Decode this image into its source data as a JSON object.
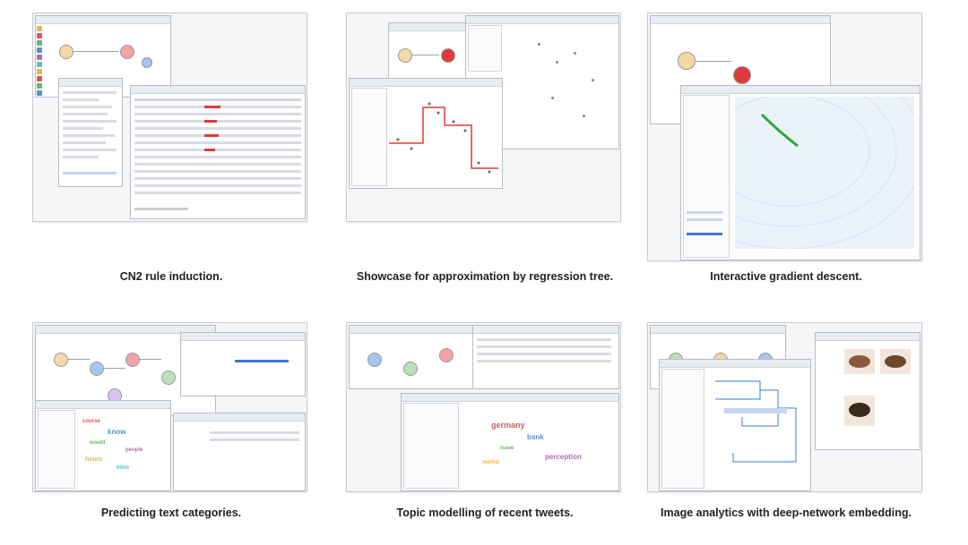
{
  "colors": {
    "thumb_bg": "#f5f6f8",
    "accent_red": "#e03a3a",
    "accent_green": "#2da836",
    "accent_blue": "#3a7bd5",
    "toolbar_colors": [
      "#e6b84a",
      "#d35b5b",
      "#6bb36b",
      "#5b8fd3",
      "#b36bb3",
      "#5bc3c3"
    ]
  },
  "cells": [
    {
      "caption": "CN2 rule induction.",
      "icon": "rule-induction-icon"
    },
    {
      "caption": "Showcase for approximation by regression tree.",
      "icon": "regression-tree-icon"
    },
    {
      "caption": "Interactive gradient descent.",
      "icon": "gradient-descent-icon"
    },
    {
      "caption": "Predicting text categories.",
      "icon": "text-classification-icon"
    },
    {
      "caption": "Topic modelling of recent tweets.",
      "icon": "word-cloud-icon"
    },
    {
      "caption": "Image analytics with deep-network embedding.",
      "icon": "image-embedding-icon"
    }
  ]
}
